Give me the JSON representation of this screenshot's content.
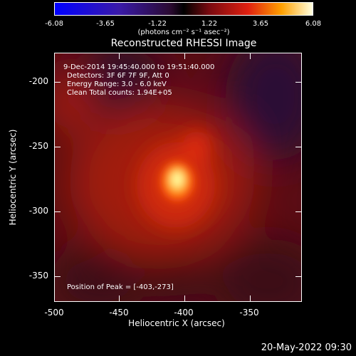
{
  "colorbar": {
    "ticks": [
      "-6.08",
      "-3.65",
      "-1.22",
      "1.22",
      "3.65",
      "6.08"
    ],
    "units": "(photons cm⁻² s⁻¹ asec⁻²)"
  },
  "plot": {
    "title": "Reconstructed RHESSI Image",
    "info": {
      "time": "9-Dec-2014 19:45:40.000 to 19:51:40.000",
      "detectors": "Detectors: 3F 6F 7F 9F, Att 0",
      "energy": "Energy Range: 3.0 - 6.0 keV",
      "method": "Clean     Total counts: 1.94E+05",
      "peak": "Position of Peak = [-403,-273]"
    },
    "xaxis": {
      "label": "Heliocentric X (arcsec)",
      "ticks": [
        "-500",
        "-450",
        "-400",
        "-350"
      ]
    },
    "yaxis": {
      "label": "Heliocentric Y (arcsec)",
      "ticks": [
        "-200",
        "-250",
        "-300",
        "-350"
      ]
    }
  },
  "footer": {
    "timestamp": "20-May-2022 09:30"
  },
  "colors": {
    "background": "#000000",
    "hot": "#ffff80",
    "mid": "#c02010",
    "cool": "#2a0a30"
  }
}
